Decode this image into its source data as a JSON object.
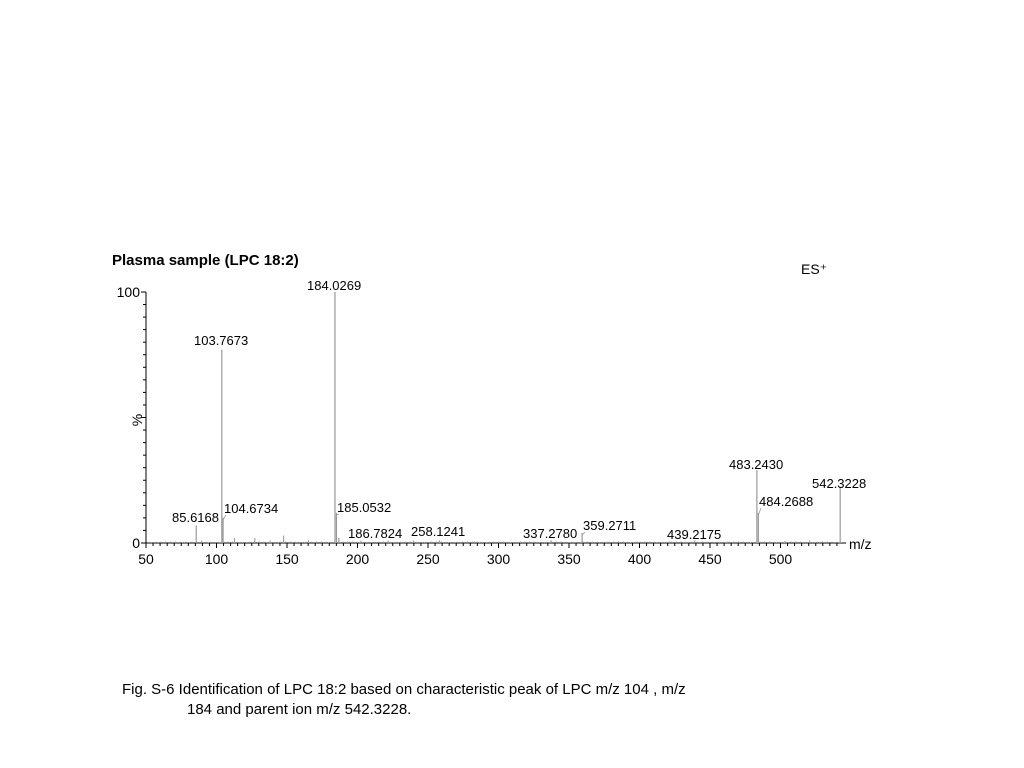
{
  "chart_data": {
    "type": "line",
    "title": "Plasma sample (LPC 18:2)",
    "ionization_label": "ES⁺",
    "xlabel": "m/z",
    "ylabel": "%",
    "xlim": [
      50,
      550
    ],
    "ylim": [
      0,
      100
    ],
    "x_ticks": [
      50,
      100,
      150,
      200,
      250,
      300,
      350,
      400,
      450,
      500
    ],
    "y_tick_labels": [
      0,
      100
    ],
    "grid": false,
    "line_color": "#999999",
    "peaks": [
      {
        "x": 85.6168,
        "y": 7,
        "label": "85.6168"
      },
      {
        "x": 103.7673,
        "y": 77,
        "label": "103.7673"
      },
      {
        "x": 104.6734,
        "y": 10,
        "label": "104.6734"
      },
      {
        "x": 184.0269,
        "y": 100,
        "label": "184.0269"
      },
      {
        "x": 185.0532,
        "y": 12,
        "label": "185.0532"
      },
      {
        "x": 186.7824,
        "y": 2,
        "label": "186.7824"
      },
      {
        "x": 258.1241,
        "y": 1,
        "label": "258.1241"
      },
      {
        "x": 337.278,
        "y": 1,
        "label": "337.2780"
      },
      {
        "x": 359.2711,
        "y": 4,
        "label": "359.2711"
      },
      {
        "x": 439.2175,
        "y": 1,
        "label": "439.2175"
      },
      {
        "x": 483.243,
        "y": 29,
        "label": "483.2430"
      },
      {
        "x": 484.2688,
        "y": 12,
        "label": "484.2688"
      },
      {
        "x": 542.3228,
        "y": 22,
        "label": "542.3228"
      }
    ],
    "minor_peaks": [
      {
        "x": 89.5,
        "y": 1
      },
      {
        "x": 112.8,
        "y": 2
      },
      {
        "x": 127.2,
        "y": 2
      },
      {
        "x": 138.0,
        "y": 1
      },
      {
        "x": 147.6,
        "y": 3
      },
      {
        "x": 165.3,
        "y": 1
      },
      {
        "x": 202.4,
        "y": 1
      },
      {
        "x": 221.7,
        "y": 1
      },
      {
        "x": 239.6,
        "y": 1
      },
      {
        "x": 283.1,
        "y": 0.6
      },
      {
        "x": 318.4,
        "y": 0.6
      },
      {
        "x": 376.9,
        "y": 0.6
      },
      {
        "x": 398.5,
        "y": 0.6
      },
      {
        "x": 421.2,
        "y": 0.6
      },
      {
        "x": 462.3,
        "y": 0.6
      },
      {
        "x": 503.1,
        "y": 0.8
      },
      {
        "x": 520.7,
        "y": 1
      }
    ]
  },
  "caption": {
    "line1": "Fig. S-6 Identification of LPC 18:2 based on characteristic peak of LPC m/z 104 , m/z",
    "line2": "184 and parent ion m/z 542.3228."
  }
}
